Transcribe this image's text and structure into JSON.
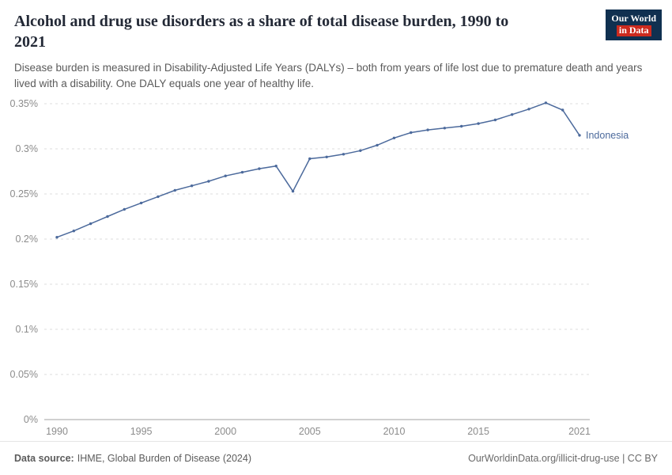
{
  "header": {
    "title": "Alcohol and drug use disorders as a share of total disease burden, 1990 to 2021",
    "subtitle": "Disease burden is measured in Disability-Adjusted Life Years (DALYs) – both from years of life lost due to premature death and years lived with a disability. One DALY equals one year of healthy life.",
    "logo": {
      "line1": "Our World",
      "line2": "in Data"
    }
  },
  "brand": {
    "navy": "#103050",
    "red": "#cc2a1e"
  },
  "chart_data": {
    "type": "line",
    "title": "Alcohol and drug use disorders as a share of total disease burden, 1990 to 2021",
    "entity": "Indonesia",
    "unit": "%",
    "x": [
      1990,
      1991,
      1992,
      1993,
      1994,
      1995,
      1996,
      1997,
      1998,
      1999,
      2000,
      2001,
      2002,
      2003,
      2004,
      2005,
      2006,
      2007,
      2008,
      2009,
      2010,
      2011,
      2012,
      2013,
      2014,
      2015,
      2016,
      2017,
      2018,
      2019,
      2020,
      2021
    ],
    "values": [
      0.202,
      0.209,
      0.217,
      0.225,
      0.233,
      0.24,
      0.247,
      0.254,
      0.259,
      0.264,
      0.27,
      0.274,
      0.278,
      0.281,
      0.253,
      0.289,
      0.291,
      0.294,
      0.298,
      0.304,
      0.312,
      0.318,
      0.321,
      0.323,
      0.325,
      0.328,
      0.332,
      0.338,
      0.344,
      0.351,
      0.343,
      0.315
    ],
    "ylim": [
      0,
      0.35
    ],
    "yticks": [
      0,
      0.05,
      0.1,
      0.15,
      0.2,
      0.25,
      0.3,
      0.35
    ],
    "ytick_labels": [
      "0%",
      "0.05%",
      "0.1%",
      "0.15%",
      "0.2%",
      "0.25%",
      "0.3%",
      "0.35%"
    ],
    "xticks": [
      1990,
      1995,
      2000,
      2005,
      2010,
      2015,
      2021
    ],
    "line_color": "#4c6a9c",
    "grid": true,
    "legend_position": "end-of-line"
  },
  "footer": {
    "source_label": "Data source:",
    "source_text": "IHME, Global Burden of Disease (2024)",
    "credit": "OurWorldinData.org/illicit-drug-use | CC BY"
  }
}
